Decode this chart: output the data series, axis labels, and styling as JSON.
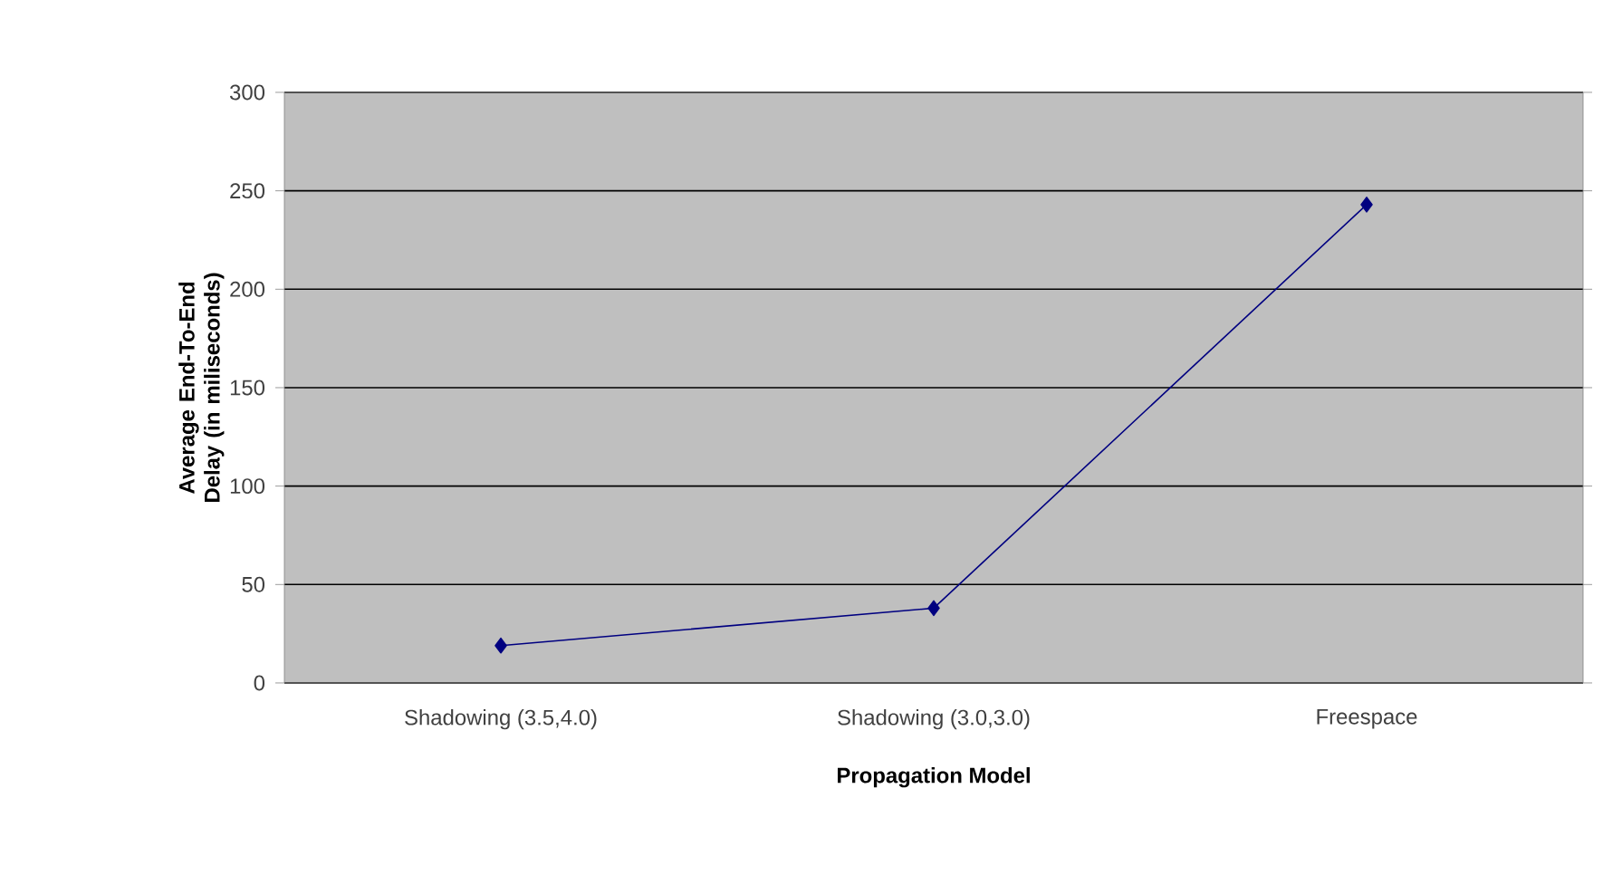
{
  "chart_data": {
    "type": "line",
    "xlabel": "Propagation Model",
    "ylabel": "Average End-To-End Delay (in miliseconds)",
    "categories": [
      "Shadowing (3.5,4.0)",
      "Shadowing (3.0,3.0)",
      "Freespace"
    ],
    "values": [
      19,
      38,
      243
    ],
    "color": "#000080",
    "marker": "diamond",
    "line_style": "solid",
    "ylim": [
      0,
      300
    ],
    "yticks": [
      0,
      50,
      100,
      150,
      200,
      250,
      300
    ],
    "grid": "y"
  }
}
